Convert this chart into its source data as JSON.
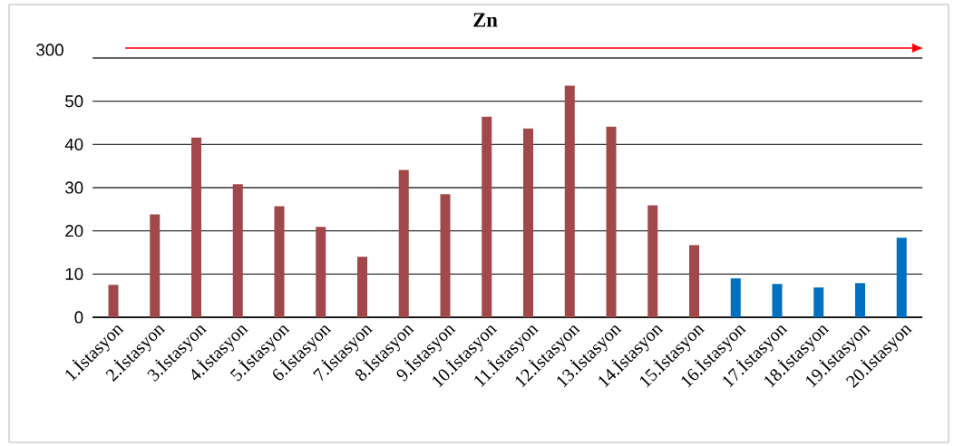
{
  "chart_data": {
    "type": "bar",
    "title": "Zn",
    "categories": [
      "1.İstasyon",
      "2.İstasyon",
      "3.İstasyon",
      "4.İstasyon",
      "5.İstasyon",
      "6.İstasyon",
      "7.İstasyon",
      "8.İstasyon",
      "9.İstasyon",
      "10.İstasyon",
      "11.İstasyon",
      "12.İstasyon",
      "13.İstasyon",
      "14.İstasyon",
      "15.İstasyon",
      "16.İstasyon",
      "17.İstasyon",
      "18.İstasyon",
      "19.İstasyon",
      "20.İstasyon"
    ],
    "values": [
      7.5,
      23.8,
      41.6,
      30.8,
      25.7,
      20.9,
      14.0,
      34.1,
      28.5,
      46.4,
      43.7,
      53.6,
      44.1,
      25.9,
      16.7,
      9.0,
      7.7,
      6.9,
      7.9,
      18.4
    ],
    "colors": [
      "#a0484a",
      "#a0484a",
      "#a0484a",
      "#a0484a",
      "#a0484a",
      "#a0484a",
      "#a0484a",
      "#a0484a",
      "#a0484a",
      "#a0484a",
      "#a0484a",
      "#a0484a",
      "#a0484a",
      "#a0484a",
      "#a0484a",
      "#0070c0",
      "#0070c0",
      "#0070c0",
      "#0070c0",
      "#0070c0"
    ],
    "ylim": [
      0,
      60
    ],
    "yticks": [
      0,
      10,
      20,
      30,
      40,
      50,
      {
        "value": 60,
        "label": null
      }
    ],
    "annotations": [
      "300"
    ],
    "grid": "y"
  }
}
